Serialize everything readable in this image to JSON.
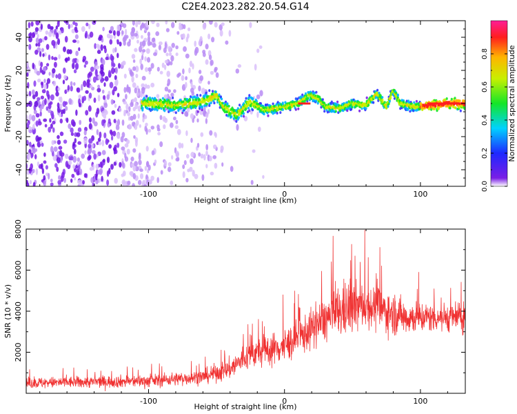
{
  "title": "C2E4.2023.282.20.54.G14",
  "chart_data": [
    {
      "type": "heatmap",
      "xlabel": "Height of straight line (km)",
      "ylabel": "Frequency (Hz)",
      "xlim": [
        -190,
        133
      ],
      "ylim": [
        -50,
        50
      ],
      "xticks": [
        -100,
        0,
        100
      ],
      "yticks": [
        -40,
        -20,
        0,
        20,
        40
      ],
      "colorbar": {
        "label": "Normalized spectral amplitude",
        "range": [
          0,
          1
        ],
        "ticks": [
          "0.0",
          "0.2",
          "0.4",
          "0.6",
          "0.8"
        ],
        "tick_values": [
          0,
          0.2,
          0.4,
          0.6,
          0.8
        ]
      },
      "ridge_frequency_hz": [
        {
          "x": -100,
          "y": 0
        },
        {
          "x": -80,
          "y": -1
        },
        {
          "x": -60,
          "y": 1
        },
        {
          "x": -50,
          "y": 5
        },
        {
          "x": -45,
          "y": -2
        },
        {
          "x": -35,
          "y": -7
        },
        {
          "x": -25,
          "y": 1
        },
        {
          "x": -15,
          "y": -4
        },
        {
          "x": 0,
          "y": -2
        },
        {
          "x": 10,
          "y": 0
        },
        {
          "x": 18,
          "y": 5
        },
        {
          "x": 25,
          "y": 3
        },
        {
          "x": 30,
          "y": -2
        },
        {
          "x": 40,
          "y": -3
        },
        {
          "x": 50,
          "y": 0
        },
        {
          "x": 60,
          "y": -1
        },
        {
          "x": 68,
          "y": 6
        },
        {
          "x": 75,
          "y": -2
        },
        {
          "x": 80,
          "y": 8
        },
        {
          "x": 85,
          "y": 0
        },
        {
          "x": 95,
          "y": -2
        },
        {
          "x": 110,
          "y": -1
        },
        {
          "x": 120,
          "y": 0
        },
        {
          "x": 133,
          "y": 0
        }
      ]
    },
    {
      "type": "line",
      "xlabel": "Height of straight line (km)",
      "ylabel": "SNR (10 * v/v)",
      "xlim": [
        -190,
        133
      ],
      "ylim": [
        0,
        8000
      ],
      "xticks": [
        -100,
        0,
        100
      ],
      "yticks": [
        2000,
        4000,
        6000,
        8000
      ],
      "color": "#f03232",
      "envelope": [
        {
          "x": -190,
          "mean": 500,
          "spread": 350
        },
        {
          "x": -100,
          "mean": 600,
          "spread": 400
        },
        {
          "x": -60,
          "mean": 800,
          "spread": 450
        },
        {
          "x": -40,
          "mean": 1200,
          "spread": 700
        },
        {
          "x": -25,
          "mean": 1900,
          "spread": 900
        },
        {
          "x": 0,
          "mean": 2300,
          "spread": 1100
        },
        {
          "x": 15,
          "mean": 2900,
          "spread": 1200
        },
        {
          "x": 30,
          "mean": 3600,
          "spread": 1400
        },
        {
          "x": 45,
          "mean": 4100,
          "spread": 1800
        },
        {
          "x": 60,
          "mean": 4300,
          "spread": 1400
        },
        {
          "x": 75,
          "mean": 4000,
          "spread": 1400
        },
        {
          "x": 90,
          "mean": 3700,
          "spread": 1100
        },
        {
          "x": 110,
          "mean": 3700,
          "spread": 900
        },
        {
          "x": 133,
          "mean": 3700,
          "spread": 900
        }
      ]
    }
  ]
}
